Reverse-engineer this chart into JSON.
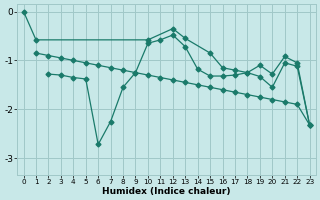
{
  "xlabel": "Humidex (Indice chaleur)",
  "bg_color": "#c8e8e8",
  "grid_color": "#a0c8c8",
  "line_color": "#1a7a6a",
  "xlim": [
    -0.5,
    23.5
  ],
  "ylim": [
    -3.35,
    0.15
  ],
  "yticks": [
    0,
    -1,
    -2,
    -3
  ],
  "xticks": [
    0,
    1,
    2,
    3,
    4,
    5,
    6,
    7,
    8,
    9,
    10,
    11,
    12,
    13,
    14,
    15,
    16,
    17,
    18,
    19,
    20,
    21,
    22,
    23
  ],
  "line1_x": [
    0,
    1,
    10,
    12,
    13,
    15,
    16,
    17,
    18,
    19,
    20,
    21,
    22,
    23
  ],
  "line1_y": [
    0.0,
    -0.58,
    -0.58,
    -0.35,
    -0.55,
    -0.85,
    -1.15,
    -1.2,
    -1.25,
    -1.1,
    -1.28,
    -0.92,
    -1.05,
    -2.32
  ],
  "line2_x": [
    1,
    2,
    3,
    4,
    5,
    6,
    7,
    8,
    9,
    10,
    11,
    12,
    13,
    14,
    15,
    16,
    17,
    18,
    19,
    20,
    21,
    22,
    23
  ],
  "line2_y": [
    -0.85,
    -0.9,
    -0.95,
    -1.0,
    -1.05,
    -1.1,
    -1.15,
    -1.2,
    -1.25,
    -1.3,
    -1.35,
    -1.4,
    -1.45,
    -1.5,
    -1.55,
    -1.6,
    -1.65,
    -1.7,
    -1.75,
    -1.8,
    -1.85,
    -1.9,
    -2.32
  ],
  "line3_x": [
    2,
    3,
    4,
    5,
    6,
    7,
    8,
    9,
    10,
    11,
    12,
    13,
    14,
    15,
    16,
    17,
    18,
    19,
    20,
    21,
    22,
    23
  ],
  "line3_y": [
    -1.28,
    -1.3,
    -1.35,
    -1.38,
    -2.72,
    -2.25,
    -1.55,
    -1.25,
    -0.65,
    -0.58,
    -0.48,
    -0.72,
    -1.18,
    -1.32,
    -1.32,
    -1.3,
    -1.25,
    -1.33,
    -1.55,
    -1.05,
    -1.12,
    -2.32
  ]
}
